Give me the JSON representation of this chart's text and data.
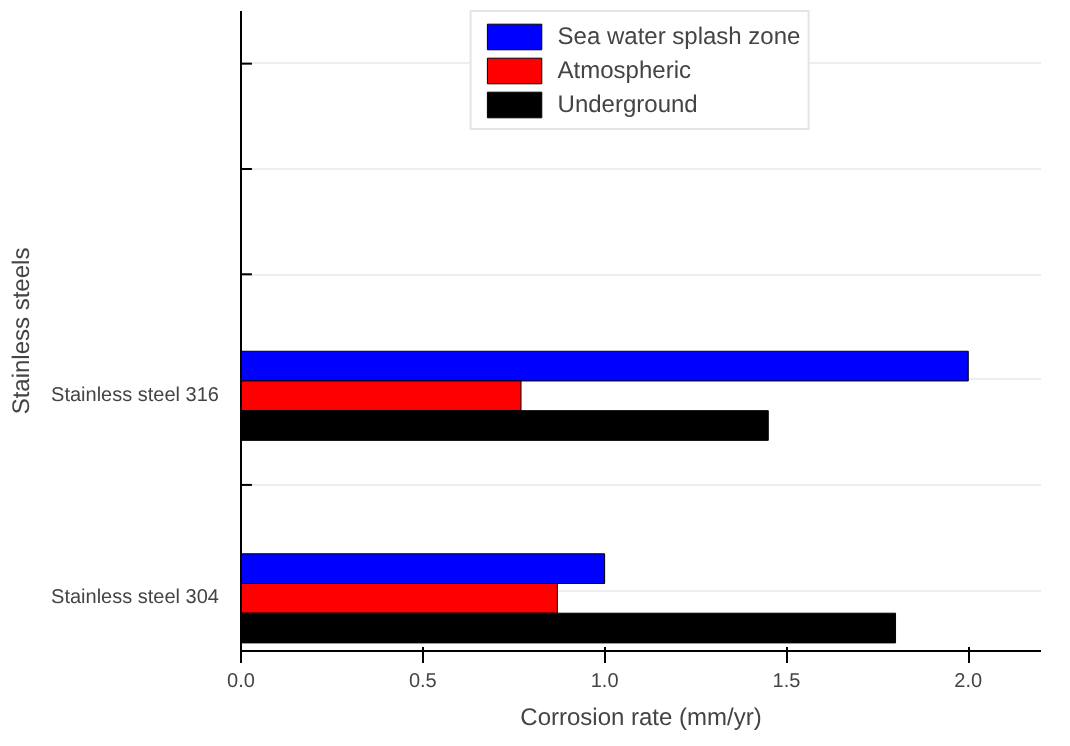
{
  "chart_data": {
    "type": "bar",
    "orientation": "horizontal",
    "xlabel": "Corrosion rate (mm/yr)",
    "ylabel": "Stainless steels",
    "categories": [
      "Stainless steel 316",
      "Stainless steel 304"
    ],
    "series": [
      {
        "name": "Sea water splash zone",
        "color": "#0000ff",
        "values": [
          2.0,
          1.0
        ]
      },
      {
        "name": "Atmospheric",
        "color": "#ff0000",
        "values": [
          0.77,
          0.87
        ]
      },
      {
        "name": "Underground",
        "color": "#000000",
        "values": [
          1.45,
          1.8
        ]
      }
    ],
    "xlim": [
      0,
      2.2
    ],
    "xticks": [
      {
        "value": 0,
        "label": "0.0"
      },
      {
        "value": 0.5,
        "label": "0.5"
      },
      {
        "value": 1,
        "label": "1.0"
      },
      {
        "value": 1.5,
        "label": "1.5"
      },
      {
        "value": 2,
        "label": "2.0"
      }
    ],
    "grid": "y",
    "legend": "top"
  }
}
